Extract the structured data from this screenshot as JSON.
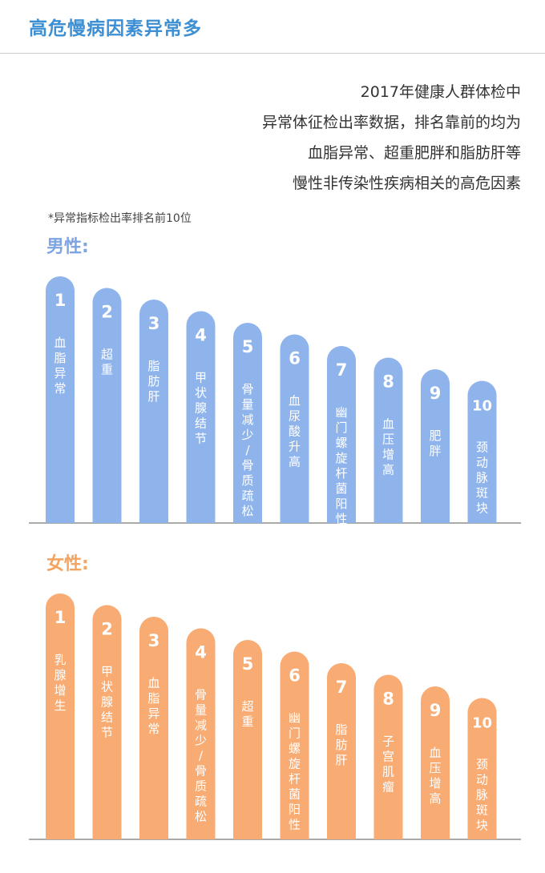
{
  "page": {
    "title": "高危慢病因素异常多",
    "intro_lines": [
      "2017年健康人群体检中",
      "异常体征检出率数据，排名靠前的均为",
      "血脂异常、超重肥胖和脂肪肝等",
      "慢性非传染性疾病相关的高危因素"
    ],
    "note": "*异常指标检出率排名前10位"
  },
  "colors": {
    "title": "#3d8fd4",
    "male": "#8fb4ec",
    "female": "#f8ab72",
    "rank_text": "#ffffff"
  },
  "chart_data": [
    {
      "type": "bar",
      "title": "男性:",
      "categories": [
        "血脂异常",
        "超重",
        "脂肪肝",
        "甲状腺结节",
        "骨量减少/骨质疏松",
        "血尿酸升高",
        "幽门螺旋杆菌阳性",
        "血压增高",
        "肥胖",
        "颈动脉斑块"
      ],
      "labels_vertical": [
        "血\n脂\n异\n常",
        "超\n重",
        "脂\n肪\n肝",
        "甲\n状\n腺\n结\n节",
        "骨\n量\n减\n少\n/\n骨\n质\n疏\n松",
        "血\n尿\n酸\n升\n高",
        "幽\n门\n螺\n旋\n杆\n菌\n阳\n性",
        "血\n压\n增\n高",
        "肥\n胖",
        "颈\n动\n脉\n斑\n块"
      ],
      "ranks": [
        1,
        2,
        3,
        4,
        5,
        6,
        7,
        8,
        9,
        10
      ]
    },
    {
      "type": "bar",
      "title": "女性:",
      "categories": [
        "乳腺增生",
        "甲状腺结节",
        "血脂异常",
        "骨量减少/骨质疏松",
        "超重",
        "幽门螺旋杆菌阳性",
        "脂肪肝",
        "子宫肌瘤",
        "血压增高",
        "颈动脉斑块"
      ],
      "labels_vertical": [
        "乳\n腺\n增\n生",
        "甲\n状\n腺\n结\n节",
        "血\n脂\n异\n常",
        "骨\n量\n减\n少\n/\n骨\n质\n疏\n松",
        "超\n重",
        "幽\n门\n螺\n旋\n杆\n菌\n阳\n性",
        "脂\n肪\n肝",
        "子\n宫\n肌\n瘤",
        "血\n压\n增\n高",
        "颈\n动\n脉\n斑\n块"
      ],
      "ranks": [
        1,
        2,
        3,
        4,
        5,
        6,
        7,
        8,
        9,
        10
      ]
    }
  ]
}
